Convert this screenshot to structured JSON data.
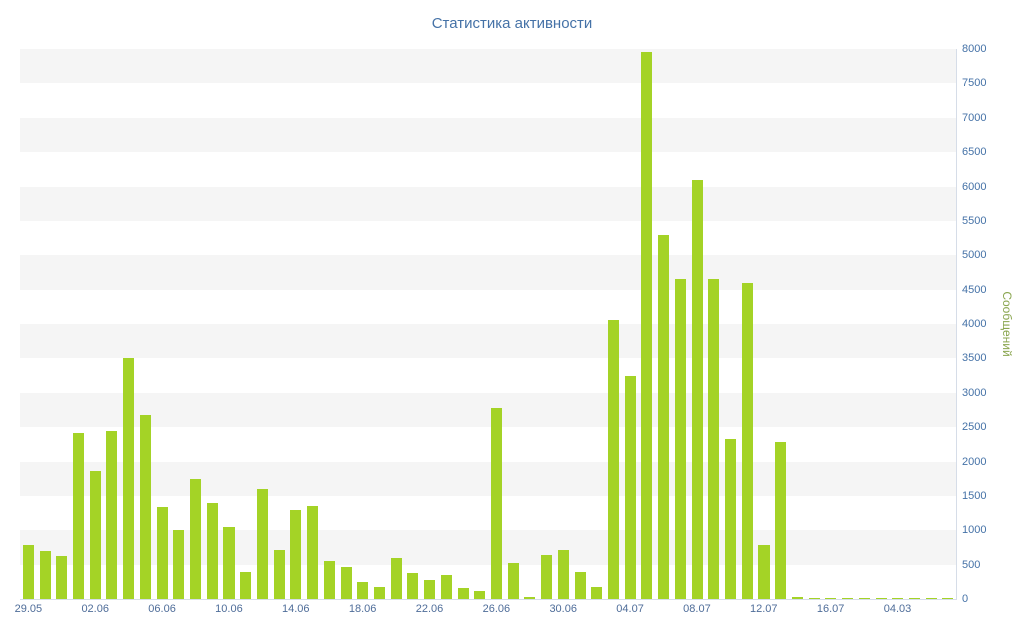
{
  "chart_data": {
    "type": "bar",
    "title": "Статистика активности",
    "xlabel": "",
    "ylabel": "Сообщений",
    "ylim": [
      0,
      8000
    ],
    "y_ticks": [
      "0",
      "500",
      "1000",
      "1500",
      "2000",
      "2500",
      "3000",
      "3500",
      "4000",
      "4500",
      "5000",
      "5500",
      "6000",
      "6500",
      "7000",
      "7500",
      "8000"
    ],
    "x_tick_labels": [
      "29.05",
      "02.06",
      "06.06",
      "10.06",
      "14.06",
      "18.06",
      "22.06",
      "26.06",
      "30.06",
      "04.07",
      "08.07",
      "12.07",
      "16.07",
      "04.03"
    ],
    "x_tick_every": 4,
    "values": [
      790,
      700,
      620,
      2420,
      1860,
      2450,
      3500,
      2680,
      1340,
      1000,
      1750,
      1400,
      1050,
      400,
      1600,
      720,
      1290,
      1350,
      550,
      470,
      250,
      170,
      600,
      380,
      280,
      350,
      160,
      120,
      2780,
      530,
      30,
      640,
      720,
      400,
      180,
      4060,
      3250,
      7950,
      5290,
      4650,
      6100,
      4650,
      2330,
      4600,
      780,
      2280,
      25,
      15,
      10,
      15,
      10,
      15,
      10,
      15,
      20,
      10
    ],
    "legend": "none",
    "grid": "alternating-horizontal-bands",
    "y_axis_side": "right",
    "colors": {
      "bar": "#a4d326",
      "title": "#4572a7",
      "y_axis_labels": "#4572a7",
      "x_axis_labels": "#4f6d99",
      "y_axis_title": "#89a54e",
      "alternate_band": "#f5f5f5",
      "axis_line": "#d6dde8",
      "background": "#ffffff"
    }
  }
}
